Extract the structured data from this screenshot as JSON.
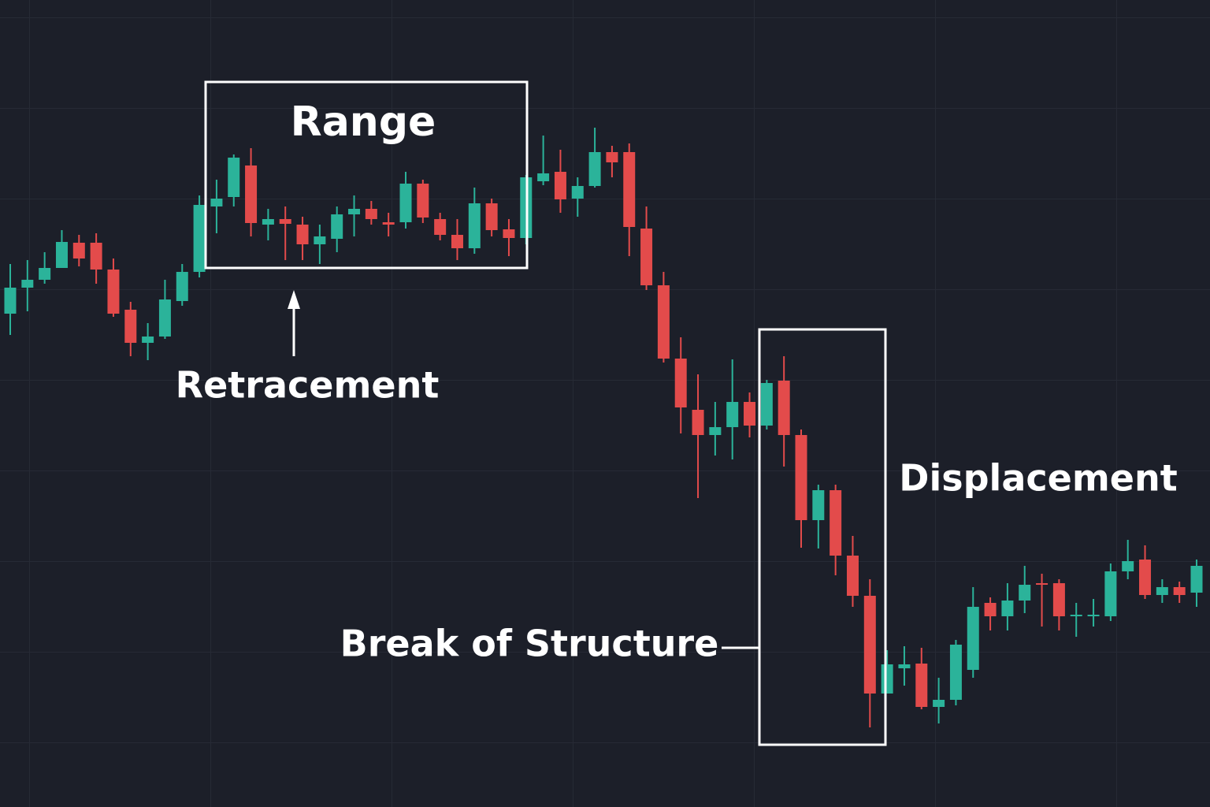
{
  "chart_data": {
    "type": "candlestick",
    "ylim": [
      0,
      1024
    ],
    "up_color": "#2bb39a",
    "down_color": "#e34b4b",
    "annotations": {
      "range": "Range",
      "retracement": "Retracement",
      "displacement": "Displacement",
      "break_of_structure": "Break of Structure"
    },
    "open": [
      626,
      659,
      669,
      684,
      716,
      716,
      682,
      631,
      589,
      597,
      642,
      679,
      762,
      774,
      814,
      739,
      746,
      739,
      714,
      721,
      752,
      759,
      742,
      742,
      791,
      746,
      726,
      709,
      766,
      733,
      722,
      794,
      806,
      772,
      788,
      831,
      831,
      734,
      662,
      569,
      504,
      472,
      482,
      514,
      484,
      541,
      472,
      364,
      402,
      319,
      268,
      144,
      176,
      182,
      127,
      136,
      174,
      259,
      242,
      262,
      284,
      284,
      242,
      242,
      242,
      299,
      314,
      269,
      279,
      272
    ],
    "high": [
      689,
      694,
      704,
      732,
      726,
      728,
      696,
      641,
      614,
      669,
      689,
      776,
      796,
      828,
      836,
      759,
      762,
      749,
      739,
      762,
      776,
      769,
      754,
      806,
      796,
      754,
      746,
      786,
      772,
      746,
      802,
      852,
      834,
      799,
      862,
      839,
      842,
      762,
      679,
      596,
      549,
      514,
      568,
      526,
      542,
      572,
      479,
      409,
      409,
      344,
      289,
      199,
      204,
      202,
      164,
      212,
      279,
      266,
      284,
      306,
      296,
      289,
      259,
      264,
      309,
      339,
      332,
      289,
      286,
      314
    ],
    "low": [
      599,
      629,
      664,
      684,
      686,
      664,
      622,
      572,
      567,
      594,
      636,
      672,
      728,
      762,
      724,
      719,
      694,
      694,
      689,
      704,
      724,
      739,
      724,
      734,
      741,
      719,
      694,
      702,
      724,
      699,
      714,
      789,
      754,
      749,
      786,
      799,
      699,
      656,
      564,
      474,
      392,
      446,
      441,
      469,
      479,
      432,
      329,
      328,
      294,
      254,
      101,
      144,
      154,
      124,
      106,
      129,
      164,
      224,
      224,
      246,
      229,
      224,
      216,
      229,
      236,
      289,
      264,
      259,
      259,
      254
    ],
    "close": [
      659,
      669,
      684,
      717,
      696,
      682,
      626,
      589,
      597,
      644,
      679,
      764,
      772,
      824,
      741,
      746,
      740,
      714,
      724,
      752,
      759,
      746,
      739,
      791,
      748,
      726,
      709,
      766,
      732,
      722,
      799,
      804,
      771,
      788,
      831,
      818,
      736,
      662,
      569,
      507,
      472,
      482,
      514,
      484,
      538,
      472,
      364,
      402,
      319,
      268,
      144,
      181,
      181,
      127,
      136,
      206,
      254,
      242,
      262,
      282,
      282,
      242,
      244,
      244,
      299,
      312,
      269,
      279,
      269,
      306
    ]
  }
}
